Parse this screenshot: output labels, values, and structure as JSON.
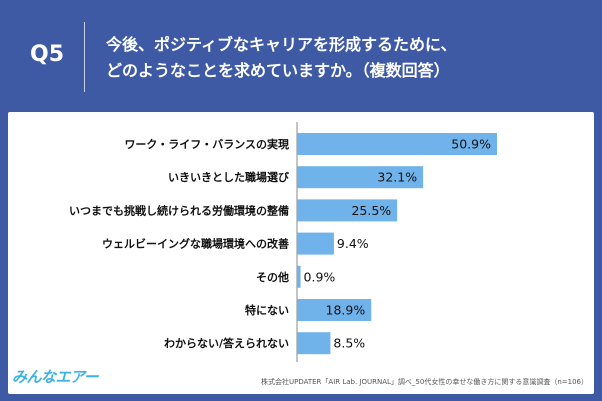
{
  "header": {
    "question_id": "Q5",
    "question_line1": "今後、ポジティブなキャリアを形成するために、",
    "question_line2": "どのようなことを求めていますか。（複数回答）"
  },
  "footer": {
    "logo_text": "みんなエアー",
    "source": "株式会社UPDATER「AIR Lab. JOURNAL」調べ_50代女性の幸せな働き方に関する意識調査（n=106）"
  },
  "colors": {
    "bar": "#6fb3ea",
    "background": "#3f5aa4"
  },
  "chart_data": {
    "type": "bar",
    "orientation": "horizontal",
    "title": "今後、ポジティブなキャリアを形成するために、どのようなことを求めていますか。（複数回答）",
    "unit": "%",
    "xlim": [
      0,
      60
    ],
    "categories": [
      "ワーク・ライフ・バランスの実現",
      "いきいきとした職場選び",
      "いつまでも挑戦し続けられる労働環境の整備",
      "ウェルビーイングな職場環境への改善",
      "その他",
      "特にない",
      "わからない/答えられない"
    ],
    "values": [
      50.9,
      32.1,
      25.5,
      9.4,
      0.9,
      18.9,
      8.5
    ],
    "value_labels": [
      "50.9%",
      "32.1%",
      "25.5%",
      "9.4%",
      "0.9%",
      "18.9%",
      "8.5%"
    ]
  }
}
